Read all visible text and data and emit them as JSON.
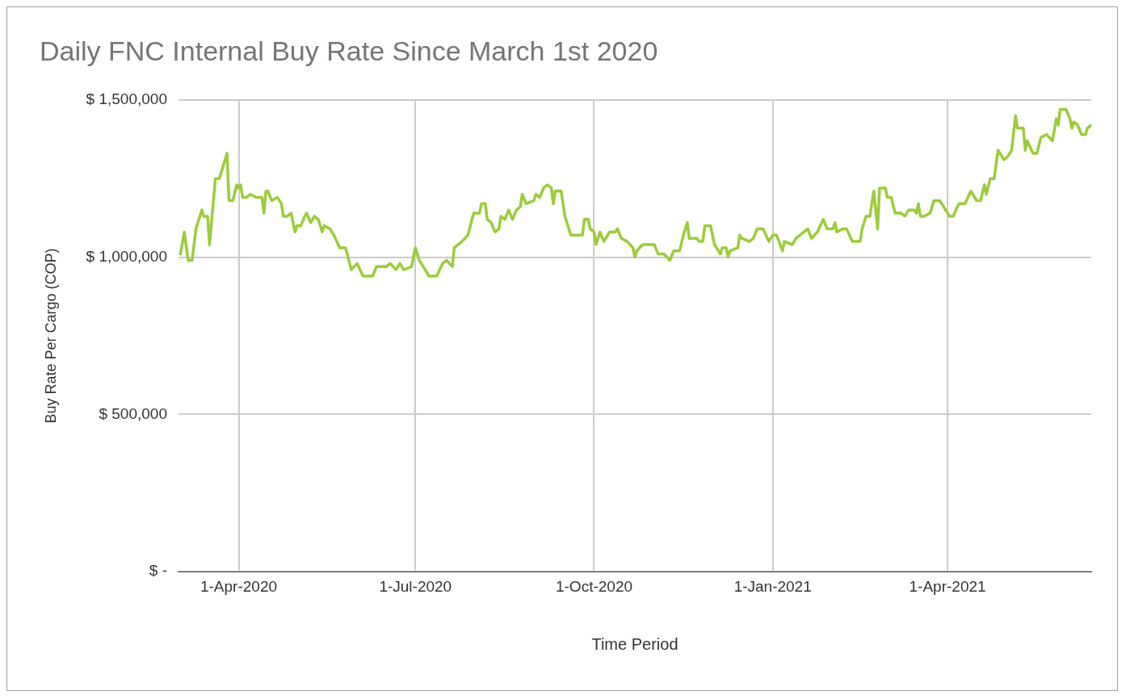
{
  "chart_data": {
    "type": "line",
    "title": "Daily FNC Internal Buy Rate Since March 1st 2020",
    "xlabel": "Time Period",
    "ylabel": "Buy Rate Per Cargo (COP)",
    "xlim": [
      "2020-03-01",
      "2021-06-14"
    ],
    "xticks": [
      {
        "value": "2020-04-01",
        "label": "1-Apr-2020"
      },
      {
        "value": "2020-07-01",
        "label": "1-Jul-2020"
      },
      {
        "value": "2020-10-01",
        "label": "1-Oct-2020"
      },
      {
        "value": "2021-01-01",
        "label": "1-Jan-2021"
      },
      {
        "value": "2021-04-01",
        "label": "1-Apr-2021"
      }
    ],
    "ylim": [
      0,
      1500000
    ],
    "yticks": [
      {
        "value": 0,
        "label": "$ -"
      },
      {
        "value": 500000,
        "label": "$ 500,000"
      },
      {
        "value": 1000000,
        "label": "$ 1,000,000"
      },
      {
        "value": 1500000,
        "label": "$ 1,500,000"
      }
    ],
    "grid": true,
    "legend": false,
    "marker": "none",
    "line_style": "solid",
    "series": [
      {
        "color": "#9ccc3c",
        "x": [
          "2020-03-02",
          "2020-03-04",
          "2020-03-06",
          "2020-03-08",
          "2020-03-10",
          "2020-03-13",
          "2020-03-14",
          "2020-03-16",
          "2020-03-17",
          "2020-03-19",
          "2020-03-20",
          "2020-03-22",
          "2020-03-24",
          "2020-03-26",
          "2020-03-27",
          "2020-03-29",
          "2020-03-31",
          "2020-04-01",
          "2020-04-02",
          "2020-04-03",
          "2020-04-05",
          "2020-04-07",
          "2020-04-10",
          "2020-04-13",
          "2020-04-14",
          "2020-04-15",
          "2020-04-16",
          "2020-04-18",
          "2020-04-21",
          "2020-04-23",
          "2020-04-24",
          "2020-04-26",
          "2020-04-28",
          "2020-04-30",
          "2020-05-01",
          "2020-05-03",
          "2020-05-05",
          "2020-05-06",
          "2020-05-08",
          "2020-05-10",
          "2020-05-12",
          "2020-05-14",
          "2020-05-15",
          "2020-05-18",
          "2020-05-20",
          "2020-05-23",
          "2020-05-26",
          "2020-05-29",
          "2020-06-01",
          "2020-06-04",
          "2020-06-09",
          "2020-06-11",
          "2020-06-16",
          "2020-06-18",
          "2020-06-21",
          "2020-06-23",
          "2020-06-25",
          "2020-06-29",
          "2020-07-01",
          "2020-07-03",
          "2020-07-06",
          "2020-07-08",
          "2020-07-12",
          "2020-07-15",
          "2020-07-17",
          "2020-07-20",
          "2020-07-21",
          "2020-07-25",
          "2020-07-28",
          "2020-07-31",
          "2020-08-03",
          "2020-08-04",
          "2020-08-06",
          "2020-08-07",
          "2020-08-09",
          "2020-08-11",
          "2020-08-13",
          "2020-08-14",
          "2020-08-16",
          "2020-08-18",
          "2020-08-20",
          "2020-08-22",
          "2020-08-24",
          "2020-08-25",
          "2020-08-27",
          "2020-08-31",
          "2020-09-01",
          "2020-09-03",
          "2020-09-05",
          "2020-09-07",
          "2020-09-09",
          "2020-09-10",
          "2020-09-11",
          "2020-09-14",
          "2020-09-16",
          "2020-09-18",
          "2020-09-19",
          "2020-09-22",
          "2020-09-25",
          "2020-09-26",
          "2020-09-28",
          "2020-09-29",
          "2020-10-01",
          "2020-10-02",
          "2020-10-04",
          "2020-10-06",
          "2020-10-09",
          "2020-10-12",
          "2020-10-13",
          "2020-10-15",
          "2020-10-18",
          "2020-10-21",
          "2020-10-22",
          "2020-10-23",
          "2020-10-26",
          "2020-11-01",
          "2020-11-03",
          "2020-11-06",
          "2020-11-09",
          "2020-11-11",
          "2020-11-14",
          "2020-11-16",
          "2020-11-18",
          "2020-11-19",
          "2020-11-23",
          "2020-11-24",
          "2020-11-26",
          "2020-11-27",
          "2020-11-30",
          "2020-12-02",
          "2020-12-05",
          "2020-12-06",
          "2020-12-08",
          "2020-12-09",
          "2020-12-10",
          "2020-12-14",
          "2020-12-15",
          "2020-12-16",
          "2020-12-20",
          "2020-12-22",
          "2020-12-24",
          "2020-12-27",
          "2020-12-30",
          "2021-01-01",
          "2021-01-03",
          "2021-01-06",
          "2021-01-07",
          "2021-01-11",
          "2021-01-13",
          "2021-01-19",
          "2021-01-21",
          "2021-01-24",
          "2021-01-27",
          "2021-01-29",
          "2021-02-01",
          "2021-02-02",
          "2021-02-03",
          "2021-02-06",
          "2021-02-08",
          "2021-02-11",
          "2021-02-15",
          "2021-02-16",
          "2021-02-18",
          "2021-02-20",
          "2021-02-22",
          "2021-02-24",
          "2021-02-25",
          "2021-02-28",
          "2021-03-01",
          "2021-03-03",
          "2021-03-05",
          "2021-03-08",
          "2021-03-10",
          "2021-03-12",
          "2021-03-15",
          "2021-03-16",
          "2021-03-17",
          "2021-03-18",
          "2021-03-20",
          "2021-03-23",
          "2021-03-25",
          "2021-03-28",
          "2021-04-02",
          "2021-04-04",
          "2021-04-06",
          "2021-04-07",
          "2021-04-10",
          "2021-04-13",
          "2021-04-16",
          "2021-04-18",
          "2021-04-20",
          "2021-04-21",
          "2021-04-23",
          "2021-04-25",
          "2021-04-27",
          "2021-04-30",
          "2021-05-02",
          "2021-05-04",
          "2021-05-06",
          "2021-05-07",
          "2021-05-10",
          "2021-05-11",
          "2021-05-12",
          "2021-05-15",
          "2021-05-17",
          "2021-05-19",
          "2021-05-22",
          "2021-05-25",
          "2021-05-27",
          "2021-05-28",
          "2021-05-29",
          "2021-06-01",
          "2021-06-03",
          "2021-06-04",
          "2021-06-05",
          "2021-06-07",
          "2021-06-09",
          "2021-06-11",
          "2021-06-12",
          "2021-06-14"
        ],
        "values": [
          1010000,
          1080000,
          990000,
          990000,
          1090000,
          1150000,
          1130000,
          1130000,
          1040000,
          1180000,
          1250000,
          1250000,
          1290000,
          1330000,
          1180000,
          1180000,
          1230000,
          1220000,
          1230000,
          1190000,
          1190000,
          1200000,
          1190000,
          1190000,
          1140000,
          1210000,
          1210000,
          1180000,
          1190000,
          1170000,
          1130000,
          1130000,
          1140000,
          1080000,
          1100000,
          1100000,
          1130000,
          1140000,
          1110000,
          1130000,
          1120000,
          1080000,
          1100000,
          1090000,
          1070000,
          1030000,
          1030000,
          960000,
          980000,
          940000,
          940000,
          970000,
          970000,
          980000,
          960000,
          980000,
          960000,
          970000,
          1030000,
          990000,
          960000,
          940000,
          940000,
          980000,
          990000,
          970000,
          1030000,
          1050000,
          1070000,
          1140000,
          1140000,
          1170000,
          1170000,
          1120000,
          1110000,
          1080000,
          1090000,
          1130000,
          1120000,
          1150000,
          1120000,
          1150000,
          1160000,
          1200000,
          1170000,
          1180000,
          1200000,
          1190000,
          1220000,
          1230000,
          1220000,
          1170000,
          1210000,
          1210000,
          1130000,
          1090000,
          1070000,
          1070000,
          1070000,
          1120000,
          1120000,
          1090000,
          1080000,
          1040000,
          1080000,
          1050000,
          1080000,
          1080000,
          1090000,
          1060000,
          1050000,
          1030000,
          1000000,
          1020000,
          1040000,
          1040000,
          1010000,
          1010000,
          990000,
          1020000,
          1020000,
          1070000,
          1110000,
          1060000,
          1060000,
          1050000,
          1050000,
          1100000,
          1100000,
          1040000,
          1010000,
          1030000,
          1030000,
          1000000,
          1020000,
          1030000,
          1070000,
          1060000,
          1050000,
          1060000,
          1090000,
          1090000,
          1050000,
          1070000,
          1070000,
          1020000,
          1050000,
          1040000,
          1060000,
          1090000,
          1060000,
          1080000,
          1120000,
          1090000,
          1090000,
          1110000,
          1080000,
          1090000,
          1090000,
          1050000,
          1050000,
          1090000,
          1130000,
          1130000,
          1210000,
          1090000,
          1220000,
          1220000,
          1190000,
          1190000,
          1140000,
          1140000,
          1130000,
          1150000,
          1150000,
          1140000,
          1170000,
          1130000,
          1130000,
          1140000,
          1180000,
          1180000,
          1130000,
          1130000,
          1160000,
          1170000,
          1170000,
          1210000,
          1180000,
          1180000,
          1230000,
          1200000,
          1250000,
          1250000,
          1340000,
          1310000,
          1320000,
          1340000,
          1450000,
          1410000,
          1410000,
          1340000,
          1370000,
          1330000,
          1330000,
          1380000,
          1390000,
          1370000,
          1440000,
          1420000,
          1470000,
          1470000,
          1440000,
          1410000,
          1430000,
          1420000,
          1390000,
          1390000,
          1410000,
          1420000
        ]
      }
    ]
  }
}
